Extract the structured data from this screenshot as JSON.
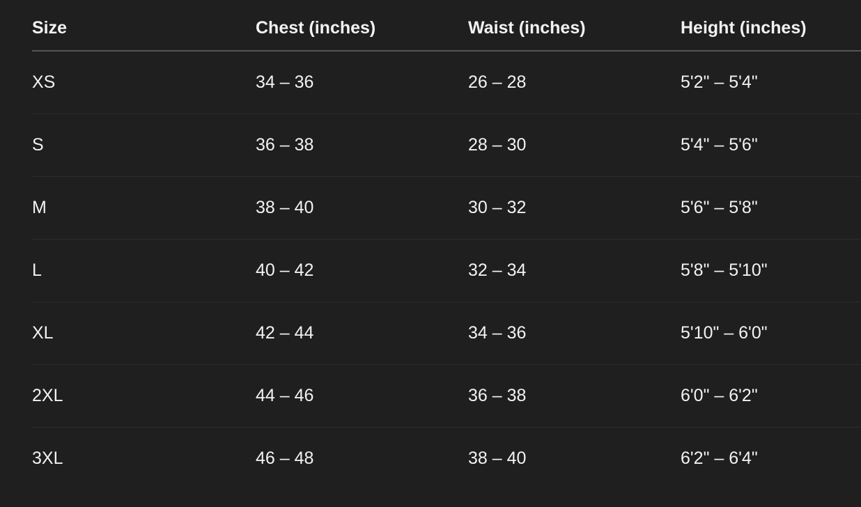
{
  "table": {
    "header": [
      "Size",
      "Chest (inches)",
      "Waist (inches)",
      "Height (inches)"
    ],
    "rows": [
      [
        "XS",
        "34 – 36",
        "26 – 28",
        "5'2\" – 5'4\""
      ],
      [
        "S",
        "36 – 38",
        "28 – 30",
        "5'4\" – 5'6\""
      ],
      [
        "M",
        "38 – 40",
        "30 – 32",
        "5'6\" – 5'8\""
      ],
      [
        "L",
        "40 – 42",
        "32 – 34",
        "5'8\" – 5'10\""
      ],
      [
        "XL",
        "42 – 44",
        "34 – 36",
        "5'10\" – 6'0\""
      ],
      [
        "2XL",
        "44 – 46",
        "36 – 38",
        "6'0\" – 6'2\""
      ],
      [
        "3XL",
        "46 – 48",
        "38 – 40",
        "6'2\" – 6'4\""
      ]
    ]
  }
}
